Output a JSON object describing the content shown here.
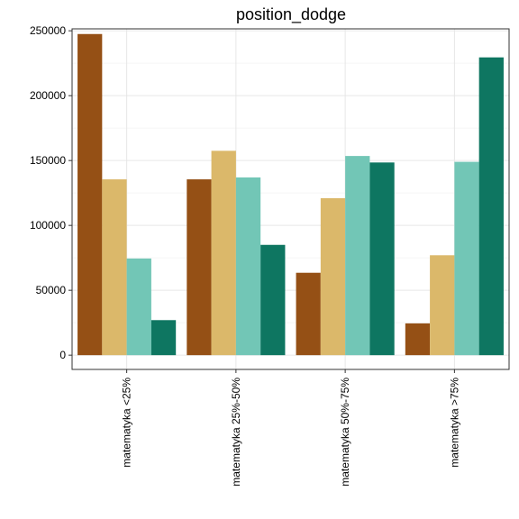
{
  "chart_data": {
    "type": "bar",
    "title": "position_dodge",
    "xlabel": "",
    "ylabel": "",
    "categories": [
      "matematyka <25%",
      "matematyka 25%-50%",
      "matematyka 50%-75%",
      "matematyka >75%"
    ],
    "series": [
      {
        "values": [
          247500,
          135500,
          63500,
          24500
        ]
      },
      {
        "values": [
          135500,
          157500,
          121000,
          77000
        ]
      },
      {
        "values": [
          74500,
          137000,
          153500,
          149000
        ]
      },
      {
        "values": [
          27000,
          85000,
          148500,
          229500
        ]
      }
    ],
    "colors": [
      "#955015",
      "#dbb86a",
      "#72c6b6",
      "#0e7661"
    ],
    "ylim": [
      -11000,
      251500
    ],
    "yticks": [
      0,
      50000,
      100000,
      150000,
      200000,
      250000
    ],
    "ytick_labels": [
      "0",
      "50000",
      "100000",
      "150000",
      "200000",
      "250000"
    ],
    "grid": true,
    "legend": "none"
  }
}
